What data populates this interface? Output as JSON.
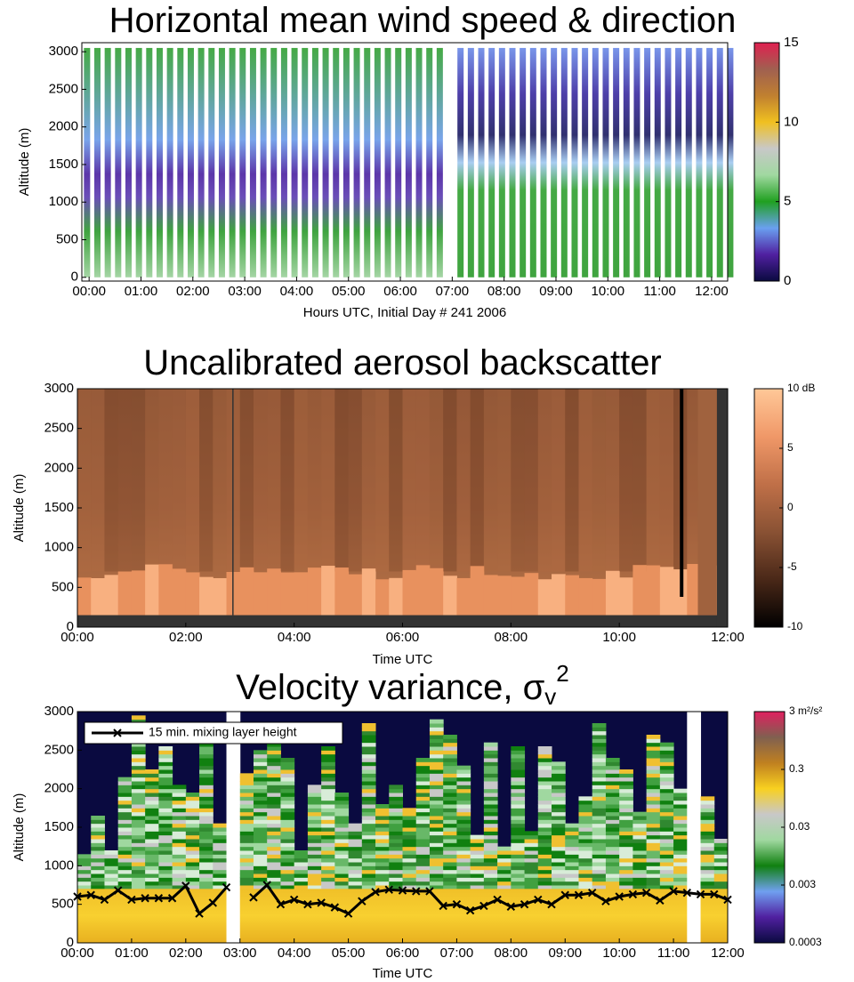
{
  "chart_data": [
    {
      "type": "heatmap",
      "title": "Horizontal mean wind speed & direction",
      "xlabel": "Hours UTC, Initial Day # 241  2006",
      "ylabel": "Altitude (m)",
      "xlim": [
        -0.14,
        12.31
      ],
      "ylim": [
        -50,
        3120
      ],
      "xticks": [
        {
          "value": 0,
          "label": "00:00"
        },
        {
          "value": 1,
          "label": "01:00"
        },
        {
          "value": 2,
          "label": "02:00"
        },
        {
          "value": 3,
          "label": "03:00"
        },
        {
          "value": 4,
          "label": "04:00"
        },
        {
          "value": 5,
          "label": "05:00"
        },
        {
          "value": 6,
          "label": "06:00"
        },
        {
          "value": 7,
          "label": "07:00"
        },
        {
          "value": 8,
          "label": "08:00"
        },
        {
          "value": 9,
          "label": "09:00"
        },
        {
          "value": 10,
          "label": "10:00"
        },
        {
          "value": 11,
          "label": "11:00"
        },
        {
          "value": 12,
          "label": "12:00"
        }
      ],
      "yticks": [
        0,
        500,
        1000,
        1500,
        2000,
        2500,
        3000
      ],
      "colorbar": {
        "lim": [
          0,
          15
        ],
        "ticks": [
          0,
          5,
          10,
          15
        ],
        "colors": [
          "#0a0a40",
          "#5020a0",
          "#6aa0f0",
          "#20a020",
          "#a0d8a0",
          "#c8c8c8",
          "#f0c020",
          "#c08030",
          "#a06050",
          "#e02050"
        ]
      }
    },
    {
      "type": "heatmap",
      "title": "Uncalibrated aerosol backscatter",
      "xlabel": "Time UTC",
      "ylabel": "Altitude (m)",
      "xlim": [
        0,
        12
      ],
      "ylim": [
        0,
        3000
      ],
      "xticks": [
        {
          "value": 0,
          "label": "00:00"
        },
        {
          "value": 2,
          "label": "02:00"
        },
        {
          "value": 4,
          "label": "04:00"
        },
        {
          "value": 6,
          "label": "06:00"
        },
        {
          "value": 8,
          "label": "08:00"
        },
        {
          "value": 10,
          "label": "10:00"
        },
        {
          "value": 12,
          "label": "12:00"
        }
      ],
      "yticks": [
        0,
        500,
        1000,
        1500,
        2000,
        2500,
        3000
      ],
      "colorbar": {
        "lim": [
          -10,
          10
        ],
        "ticks": [
          {
            "value": 10,
            "label": "10 dB"
          },
          5,
          0,
          -5,
          -10
        ],
        "colors": [
          "#000000",
          "#4a2818",
          "#8a5234",
          "#c07048",
          "#f09868",
          "#ffc898"
        ]
      }
    },
    {
      "type": "heatmap",
      "title": "Velocity variance, σ",
      "title_subscript": "v",
      "title_superscript": "2",
      "xlabel": "Time UTC",
      "ylabel": "Altitude (m)",
      "xlim": [
        0,
        12
      ],
      "ylim": [
        0,
        3000
      ],
      "xticks": [
        {
          "value": 0,
          "label": "00:00"
        },
        {
          "value": 1,
          "label": "01:00"
        },
        {
          "value": 2,
          "label": "02:00"
        },
        {
          "value": 3,
          "label": "03:00"
        },
        {
          "value": 4,
          "label": "04:00"
        },
        {
          "value": 5,
          "label": "05:00"
        },
        {
          "value": 6,
          "label": "06:00"
        },
        {
          "value": 7,
          "label": "07:00"
        },
        {
          "value": 8,
          "label": "08:00"
        },
        {
          "value": 9,
          "label": "09:00"
        },
        {
          "value": 10,
          "label": "10:00"
        },
        {
          "value": 11,
          "label": "11:00"
        },
        {
          "value": 12,
          "label": "12:00"
        }
      ],
      "yticks": [
        0,
        500,
        1000,
        1500,
        2000,
        2500,
        3000
      ],
      "colorbar": {
        "lim": [
          0.0003,
          3
        ],
        "log_scale": true,
        "ticks": [
          0.0003,
          0.003,
          0.03,
          0.3,
          {
            "value": 3,
            "label": "3 m²/s²"
          }
        ],
        "colors": [
          "#0a0a40",
          "#5020a0",
          "#70a0f0",
          "#108010",
          "#a0d8a0",
          "#c8c8c8",
          "#f8d020",
          "#c08020",
          "#806050",
          "#e02060"
        ]
      },
      "legend": "upper left",
      "series": [
        {
          "name": "15 min. mixing layer height",
          "color": "#000000",
          "marker": "x",
          "x": [
            0,
            0.25,
            0.5,
            0.75,
            1,
            1.25,
            1.5,
            1.75,
            2,
            2.25,
            2.5,
            2.75,
            3,
            3.25,
            3.5,
            3.75,
            4,
            4.25,
            4.5,
            4.75,
            5,
            5.25,
            5.5,
            5.75,
            6,
            6.25,
            6.5,
            6.75,
            7,
            7.25,
            7.5,
            7.75,
            8,
            8.25,
            8.5,
            8.75,
            9,
            9.25,
            9.5,
            9.75,
            10,
            10.25,
            10.5,
            10.75,
            11,
            11.25,
            11.5,
            11.75,
            12
          ],
          "values": [
            600,
            620,
            560,
            680,
            560,
            580,
            580,
            580,
            740,
            380,
            520,
            720,
            null,
            590,
            750,
            500,
            560,
            500,
            520,
            460,
            380,
            540,
            660,
            690,
            680,
            670,
            670,
            480,
            500,
            420,
            480,
            560,
            470,
            500,
            560,
            500,
            620,
            620,
            650,
            540,
            600,
            630,
            650,
            550,
            670,
            650,
            630,
            630,
            560
          ]
        }
      ]
    }
  ]
}
